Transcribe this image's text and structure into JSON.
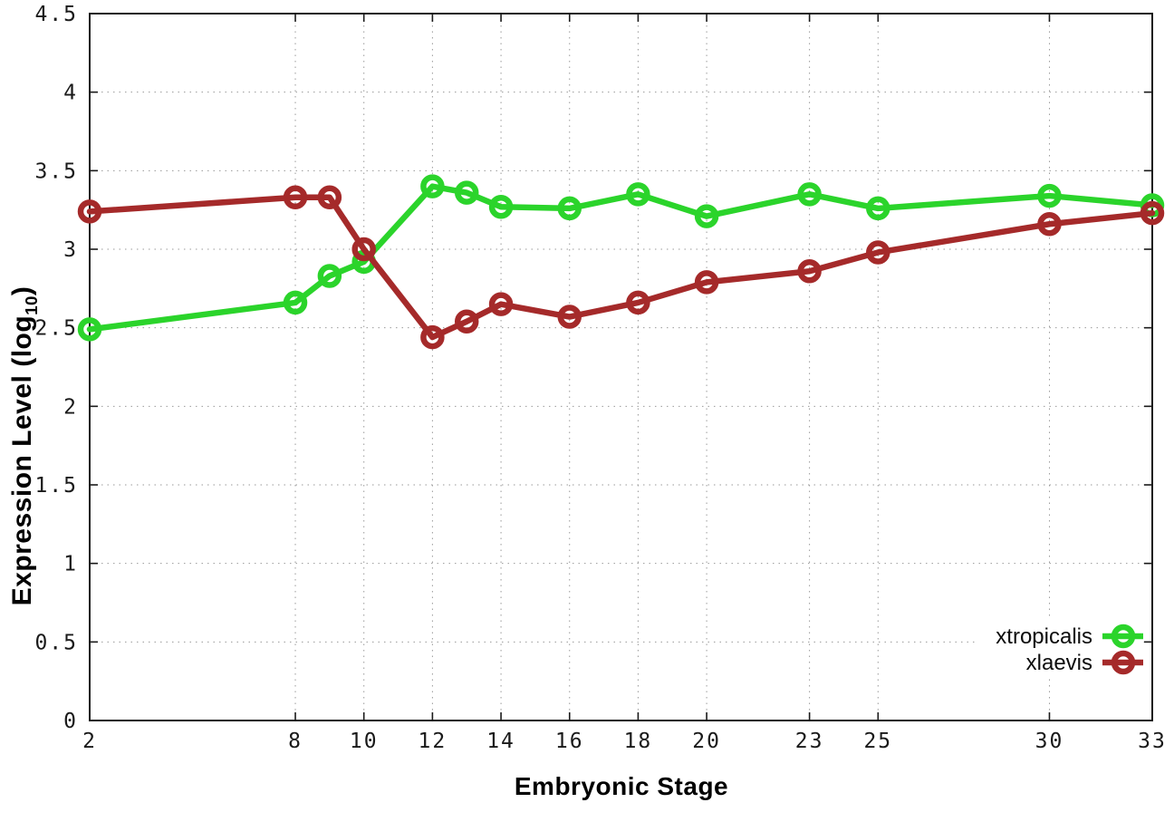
{
  "chart_data": {
    "type": "line",
    "title": "",
    "xlabel": "Embryonic Stage",
    "ylabel": {
      "main": "Expression Level (log",
      "sub": "10",
      "end": ")"
    },
    "xlim": [
      2,
      33
    ],
    "ylim": [
      0,
      4.5
    ],
    "xticks": [
      "2",
      "8",
      "10",
      "12",
      "14",
      "16",
      "18",
      "20",
      "23",
      "25",
      "30",
      "33"
    ],
    "yticks": [
      "0",
      "0.5",
      "1",
      "1.5",
      "2",
      "2.5",
      "3",
      "3.5",
      "4",
      "4.5"
    ],
    "grid": true,
    "border_color": "#1a1a1a",
    "grid_color": "#9a9a9a",
    "legend_position": "bottom-right-inside",
    "x": [
      2,
      8,
      9,
      10,
      12,
      13,
      14,
      16,
      18,
      20,
      23,
      25,
      30,
      33
    ],
    "series": [
      {
        "name": "xtropicalis",
        "color": "#2bd42b",
        "values": [
          2.49,
          2.66,
          2.83,
          2.92,
          3.4,
          3.36,
          3.27,
          3.26,
          3.35,
          3.21,
          3.35,
          3.26,
          3.34,
          3.28
        ]
      },
      {
        "name": "xlaevis",
        "color": "#a52a2a",
        "values": [
          3.24,
          3.33,
          3.33,
          3.0,
          2.44,
          2.54,
          2.65,
          2.57,
          2.66,
          2.79,
          2.86,
          2.98,
          3.16,
          3.23
        ]
      }
    ]
  }
}
